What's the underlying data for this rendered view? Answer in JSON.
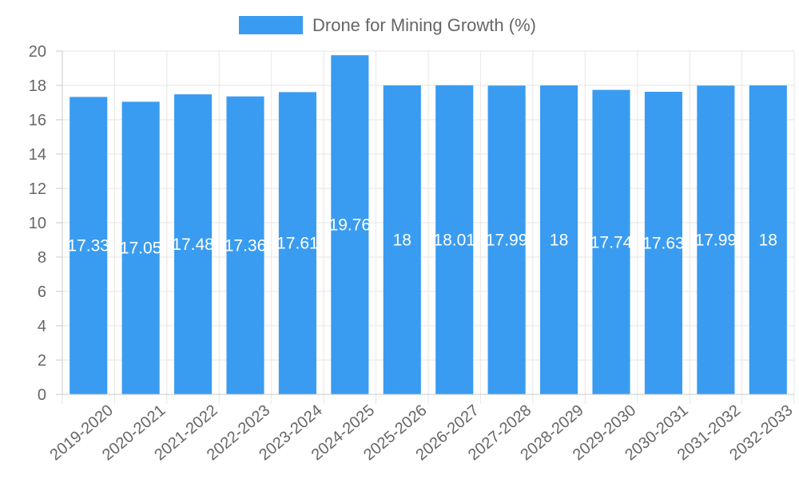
{
  "chart_data": {
    "type": "bar",
    "title": "",
    "xlabel": "",
    "ylabel": "",
    "categories": [
      "2019-2020",
      "2020-2021",
      "2021-2022",
      "2022-2023",
      "2023-2024",
      "2024-2025",
      "2025-2026",
      "2026-2027",
      "2027-2028",
      "2028-2029",
      "2029-2030",
      "2030-2031",
      "2031-2032",
      "2032-2033"
    ],
    "series": [
      {
        "name": "Drone for Mining Growth (%)",
        "values": [
          17.33,
          17.05,
          17.48,
          17.36,
          17.61,
          19.76,
          18,
          18.01,
          17.99,
          18,
          17.74,
          17.63,
          17.99,
          18
        ],
        "data_labels": [
          "17.33",
          "17.05",
          "17.48",
          "17.36",
          "17.61",
          "19.76",
          "18",
          "18.01",
          "17.99",
          "18",
          "17.74",
          "17.63",
          "17.99",
          "18"
        ]
      }
    ],
    "ylim": [
      0,
      20
    ],
    "yticks": [
      "0",
      "2",
      "4",
      "6",
      "8",
      "10",
      "12",
      "14",
      "16",
      "18",
      "20"
    ],
    "grid": true,
    "legend_position": "top-center",
    "colors": {
      "bar": "#3a9cf0",
      "grid": "#e6e6e6",
      "axis": "#c8c8c8",
      "tick_text": "#666666",
      "data_label": "#ffffff"
    }
  }
}
